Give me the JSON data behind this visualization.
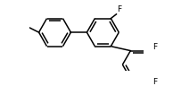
{
  "bg_color": "#ffffff",
  "line_color": "#000000",
  "line_width": 1.1,
  "font_size": 6.5,
  "font_family": "DejaVu Sans",
  "label_F1": "F",
  "label_F2": "F",
  "label_F3": "F"
}
